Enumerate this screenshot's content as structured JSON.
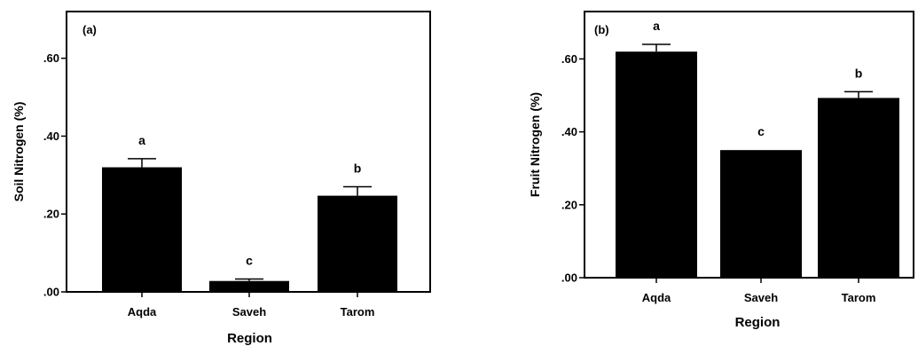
{
  "chart_data": [
    {
      "type": "bar",
      "panel_label": "(a)",
      "categories": [
        "Aqda",
        "Saveh",
        "Tarom"
      ],
      "values": [
        0.32,
        0.028,
        0.247
      ],
      "errors": [
        0.022,
        0.005,
        0.023
      ],
      "letters": [
        "a",
        "c",
        "b"
      ],
      "ylabel": "Soil Nitrogen (%)",
      "xlabel": "Region",
      "ylim": [
        0,
        0.72
      ],
      "yticks": [
        0,
        0.2,
        0.4,
        0.6
      ],
      "ytick_labels": [
        ".00",
        ".20",
        ".40",
        ".60"
      ],
      "bar_color": "#000000",
      "grid": false
    },
    {
      "type": "bar",
      "panel_label": "(b)",
      "categories": [
        "Aqda",
        "Saveh",
        "Tarom"
      ],
      "values": [
        0.62,
        0.35,
        0.493
      ],
      "errors": [
        0.02,
        0.0,
        0.017
      ],
      "letters": [
        "a",
        "c",
        "b"
      ],
      "ylabel": "Fruit Nitrogen (%)",
      "xlabel": "Region",
      "ylim": [
        0,
        0.73
      ],
      "yticks": [
        0,
        0.2,
        0.4,
        0.6
      ],
      "ytick_labels": [
        ".00",
        ".20",
        ".40",
        ".60"
      ],
      "bar_color": "#000000",
      "grid": false
    }
  ]
}
